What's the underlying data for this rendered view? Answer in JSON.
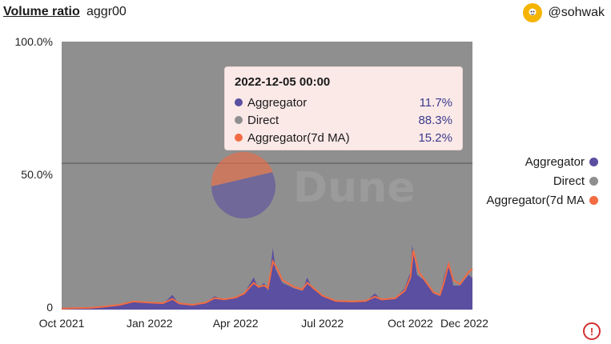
{
  "header": {
    "title": "Volume ratio",
    "subtitle": "aggr00",
    "author": "@sohwak"
  },
  "colors": {
    "aggregator": "#5a4fa0",
    "direct": "#8f8f8f",
    "ma": "#f26b43",
    "tooltip_bg": "#fbe9e8"
  },
  "icons": {
    "avatar": "sohwak-avatar-icon",
    "warning": "warning-icon",
    "watermark": "dune-watermark"
  },
  "watermark": "Dune",
  "tooltip": {
    "date": "2022-12-05 00:00",
    "rows": [
      {
        "label": "Aggregator",
        "value": "11.7%"
      },
      {
        "label": "Direct",
        "value": "88.3%"
      },
      {
        "label": "Aggregator(7d MA)",
        "value": "15.2%"
      }
    ]
  },
  "legend": [
    "Aggregator",
    "Direct",
    "Aggregator(7d MA"
  ],
  "chart_data": {
    "type": "area",
    "stacked_percent": true,
    "x_ticks": [
      "Oct 2021",
      "Jan 2022",
      "Apr 2022",
      "Jul 2022",
      "Oct 2022",
      "Dec 2022"
    ],
    "x_tick_dates": [
      "2021-10-01",
      "2022-01-01",
      "2022-04-01",
      "2022-07-01",
      "2022-10-01",
      "2022-12-01"
    ],
    "y_ticks": [
      "100.0%",
      "50.0%",
      "0"
    ],
    "ylim": [
      0,
      100
    ],
    "x_range": [
      "2021-10-01",
      "2022-12-05"
    ],
    "legend_position": "right",
    "series": [
      {
        "name": "Aggregator",
        "points": [
          [
            "2021-10-01",
            0.3
          ],
          [
            "2021-10-15",
            0.5
          ],
          [
            "2021-11-01",
            0.7
          ],
          [
            "2021-11-15",
            1.0
          ],
          [
            "2021-12-01",
            1.5
          ],
          [
            "2021-12-15",
            3.0
          ],
          [
            "2022-01-01",
            2.5
          ],
          [
            "2022-01-15",
            2.2
          ],
          [
            "2022-01-25",
            5.5
          ],
          [
            "2022-02-01",
            2.0
          ],
          [
            "2022-02-15",
            1.5
          ],
          [
            "2022-03-01",
            2.5
          ],
          [
            "2022-03-10",
            5.0
          ],
          [
            "2022-03-20",
            3.5
          ],
          [
            "2022-04-01",
            4.5
          ],
          [
            "2022-04-10",
            6.0
          ],
          [
            "2022-04-20",
            12.0
          ],
          [
            "2022-04-25",
            8.0
          ],
          [
            "2022-05-01",
            10.0
          ],
          [
            "2022-05-05",
            7.0
          ],
          [
            "2022-05-10",
            23.0
          ],
          [
            "2022-05-13",
            15.0
          ],
          [
            "2022-05-20",
            10.0
          ],
          [
            "2022-06-01",
            8.0
          ],
          [
            "2022-06-10",
            7.0
          ],
          [
            "2022-06-15",
            12.0
          ],
          [
            "2022-06-20",
            8.0
          ],
          [
            "2022-07-01",
            5.0
          ],
          [
            "2022-07-15",
            3.0
          ],
          [
            "2022-08-01",
            2.8
          ],
          [
            "2022-08-15",
            3.0
          ],
          [
            "2022-08-25",
            6.0
          ],
          [
            "2022-09-01",
            3.5
          ],
          [
            "2022-09-15",
            4.0
          ],
          [
            "2022-09-25",
            8.0
          ],
          [
            "2022-10-01",
            14.0
          ],
          [
            "2022-10-03",
            24.0
          ],
          [
            "2022-10-08",
            13.0
          ],
          [
            "2022-10-15",
            11.0
          ],
          [
            "2022-10-25",
            6.0
          ],
          [
            "2022-11-01",
            5.0
          ],
          [
            "2022-11-05",
            12.0
          ],
          [
            "2022-11-10",
            18.0
          ],
          [
            "2022-11-15",
            9.0
          ],
          [
            "2022-11-22",
            9.0
          ],
          [
            "2022-12-01",
            13.0
          ],
          [
            "2022-12-05",
            11.7
          ]
        ]
      },
      {
        "name": "Direct",
        "note_shows": "remainder to 100%"
      },
      {
        "name": "Aggregator(7d MA)",
        "points": [
          [
            "2021-10-01",
            0.4
          ],
          [
            "2021-10-15",
            0.5
          ],
          [
            "2021-11-01",
            0.7
          ],
          [
            "2021-11-15",
            1.1
          ],
          [
            "2021-12-01",
            1.8
          ],
          [
            "2021-12-15",
            3.0
          ],
          [
            "2022-01-01",
            2.6
          ],
          [
            "2022-01-15",
            2.4
          ],
          [
            "2022-01-25",
            4.0
          ],
          [
            "2022-02-01",
            2.3
          ],
          [
            "2022-02-15",
            1.8
          ],
          [
            "2022-03-01",
            2.6
          ],
          [
            "2022-03-10",
            4.3
          ],
          [
            "2022-03-20",
            3.8
          ],
          [
            "2022-04-01",
            4.5
          ],
          [
            "2022-04-10",
            6.0
          ],
          [
            "2022-04-20",
            10.0
          ],
          [
            "2022-04-25",
            8.5
          ],
          [
            "2022-05-01",
            9.0
          ],
          [
            "2022-05-05",
            8.0
          ],
          [
            "2022-05-10",
            18.0
          ],
          [
            "2022-05-15",
            15.0
          ],
          [
            "2022-05-20",
            11.0
          ],
          [
            "2022-06-01",
            8.5
          ],
          [
            "2022-06-10",
            7.5
          ],
          [
            "2022-06-15",
            10.0
          ],
          [
            "2022-06-20",
            8.5
          ],
          [
            "2022-07-01",
            5.2
          ],
          [
            "2022-07-15",
            3.2
          ],
          [
            "2022-08-01",
            3.0
          ],
          [
            "2022-08-15",
            3.2
          ],
          [
            "2022-08-25",
            4.8
          ],
          [
            "2022-09-01",
            3.8
          ],
          [
            "2022-09-15",
            4.2
          ],
          [
            "2022-09-25",
            7.0
          ],
          [
            "2022-10-01",
            12.0
          ],
          [
            "2022-10-04",
            22.0
          ],
          [
            "2022-10-10",
            14.0
          ],
          [
            "2022-10-15",
            11.5
          ],
          [
            "2022-10-25",
            6.5
          ],
          [
            "2022-11-01",
            5.5
          ],
          [
            "2022-11-05",
            10.0
          ],
          [
            "2022-11-10",
            17.0
          ],
          [
            "2022-11-15",
            11.0
          ],
          [
            "2022-11-22",
            9.5
          ],
          [
            "2022-12-01",
            14.0
          ],
          [
            "2022-12-05",
            15.2
          ]
        ]
      }
    ]
  }
}
